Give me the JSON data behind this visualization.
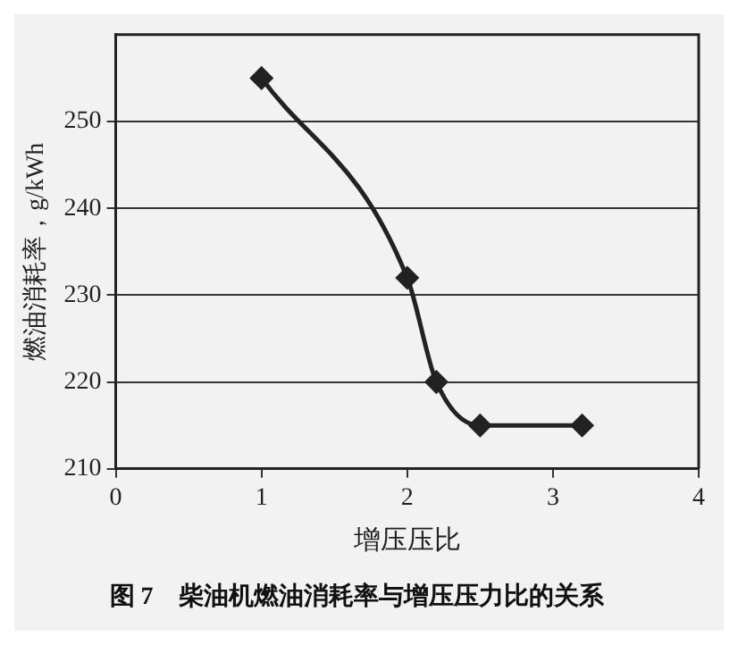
{
  "chart_data": {
    "type": "line",
    "title": "图 7　柴油机燃油消耗率与增压压力比的关系",
    "xlabel": "增压压比",
    "ylabel": "燃油消耗率，g/kWh",
    "series": [
      {
        "color": "#222222",
        "x": [
          1.0,
          2.0,
          2.2,
          2.5,
          3.2
        ],
        "values": [
          255,
          232,
          220,
          215,
          215
        ]
      }
    ],
    "xlim": [
      0,
      4
    ],
    "xticks": [
      0,
      1,
      2,
      3,
      4
    ],
    "ylim": [
      210,
      260
    ],
    "yticks": [
      210,
      220,
      230,
      240,
      250
    ],
    "grid": "y",
    "marker": "diamond",
    "line_style": "solid",
    "legend": false
  }
}
